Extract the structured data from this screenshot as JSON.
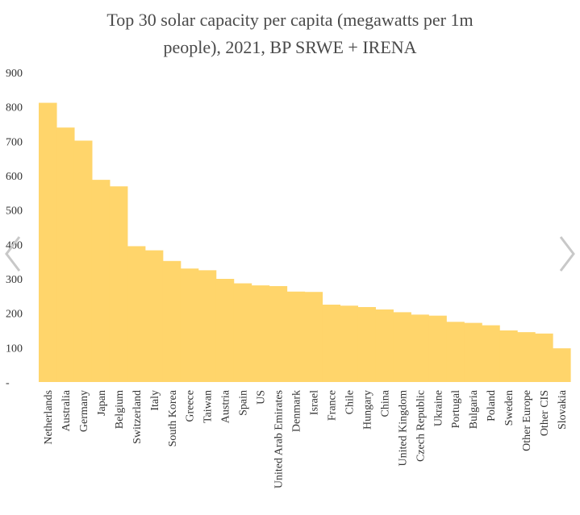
{
  "title_lines": [
    "Top 30 solar capacity per capita (megawatts per 1m",
    "people), 2021, BP SRWE + IRENA"
  ],
  "nav": {
    "prev_icon": "chevron-left-icon",
    "next_icon": "chevron-right-icon"
  },
  "chart_data": {
    "type": "bar",
    "title": "Top 30 solar capacity per capita (megawatts per 1m people), 2021, BP SRWE + IRENA",
    "xlabel": "",
    "ylabel": "",
    "ylim": [
      0,
      900
    ],
    "y_ticks": [
      "-",
      "100",
      "200",
      "300",
      "400",
      "500",
      "600",
      "700",
      "800",
      "900"
    ],
    "bar_color": "#FFD56B",
    "grid": false,
    "categories": [
      "Netherlands",
      "Australia",
      "Germany",
      "Japan",
      "Belgium",
      "Switzerland",
      "Italy",
      "South Korea",
      "Greece",
      "Taiwan",
      "Austria",
      "Spain",
      "US",
      "United Arab Emirates",
      "Denmark",
      "Israel",
      "France",
      "Chile",
      "Hungary",
      "China",
      "United Kingdom",
      "Czech Republic",
      "Ukraine",
      "Portugal",
      "Bulgaria",
      "Poland",
      "Sweden",
      "Other Europe",
      "Other CIS",
      "Slovakia"
    ],
    "values": [
      812,
      740,
      702,
      588,
      569,
      395,
      383,
      352,
      330,
      325,
      300,
      287,
      281,
      279,
      263,
      262,
      225,
      222,
      218,
      211,
      203,
      196,
      193,
      175,
      172,
      165,
      150,
      145,
      141,
      98
    ]
  }
}
